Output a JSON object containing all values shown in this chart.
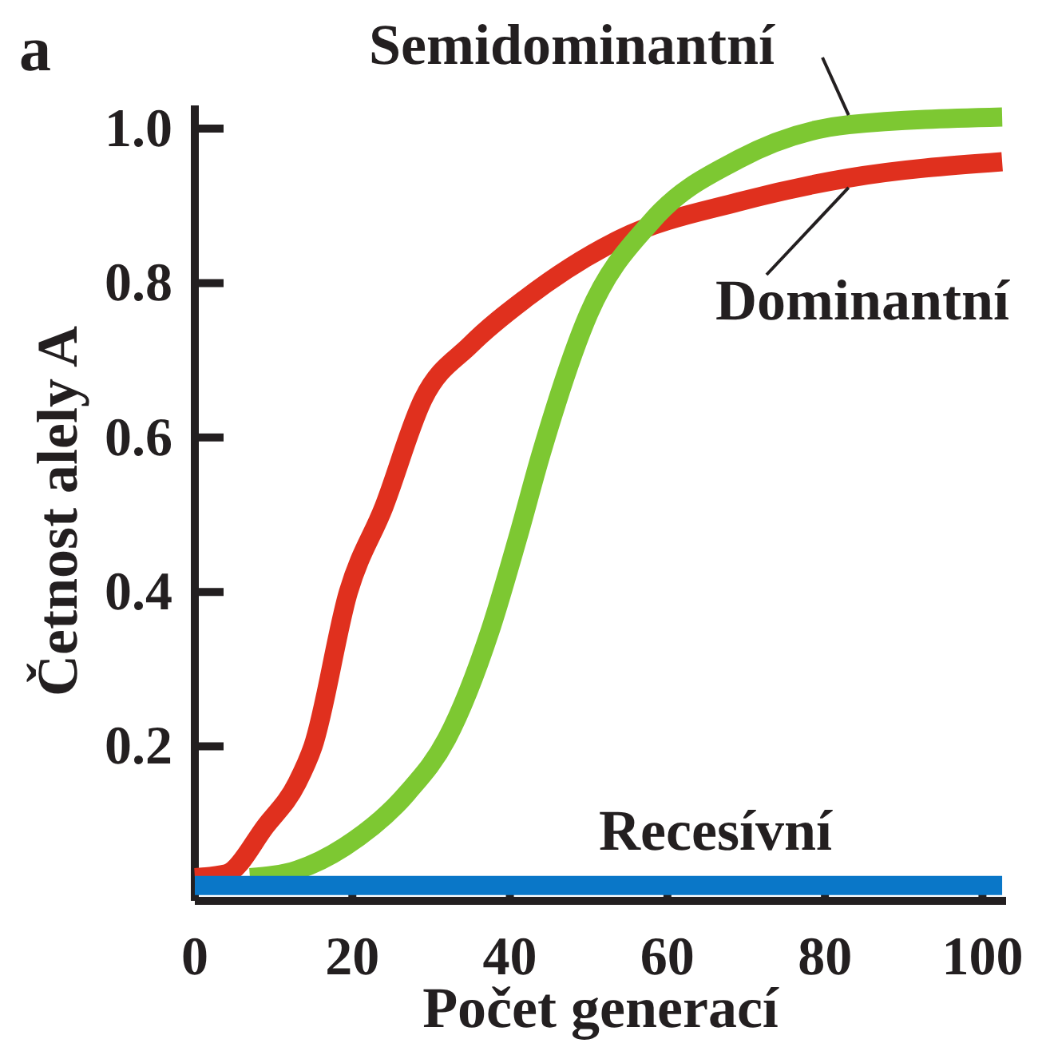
{
  "chart_data": {
    "type": "line",
    "xlabel": "Počet generací",
    "ylabel": "Četnost alely A",
    "annotations": [
      "a"
    ],
    "xlim": [
      0,
      103
    ],
    "ylim": [
      0,
      1.03
    ],
    "xticks": [
      0,
      20,
      40,
      60,
      80,
      100
    ],
    "yticks": [
      {
        "value": 0,
        "label": null
      },
      0.2,
      0.4,
      0.6,
      0.8,
      {
        "value": 1,
        "label": "1.0"
      }
    ],
    "grid": false,
    "legend": false,
    "line_style": "solid",
    "marker": "none",
    "series": [
      {
        "name": "Semidominantní",
        "color": "#7dc832",
        "x": [
          7,
          13,
          19,
          27,
          32,
          37.5,
          41,
          44,
          50,
          58,
          69,
          83,
          102.5
        ],
        "values": [
          0.03,
          0.04,
          0.07,
          0.14,
          0.21,
          0.35,
          0.47,
          0.58,
          0.76,
          0.88,
          0.96,
          1.005,
          1.015
        ]
      },
      {
        "name": "Dominantní",
        "color": "#e0301e",
        "x": [
          0,
          4,
          9,
          13,
          15,
          19.5,
          24,
          29,
          35,
          42,
          54,
          69,
          83,
          102.5
        ],
        "values": [
          0.03,
          0.035,
          0.097,
          0.153,
          0.2,
          0.4,
          0.51,
          0.65,
          0.72,
          0.78,
          0.857,
          0.905,
          0.936,
          0.957
        ]
      },
      {
        "name": "Recesívní",
        "color": "#0a77c8",
        "x": [
          0,
          102.5
        ],
        "values": [
          0.02,
          0.02
        ]
      }
    ]
  }
}
